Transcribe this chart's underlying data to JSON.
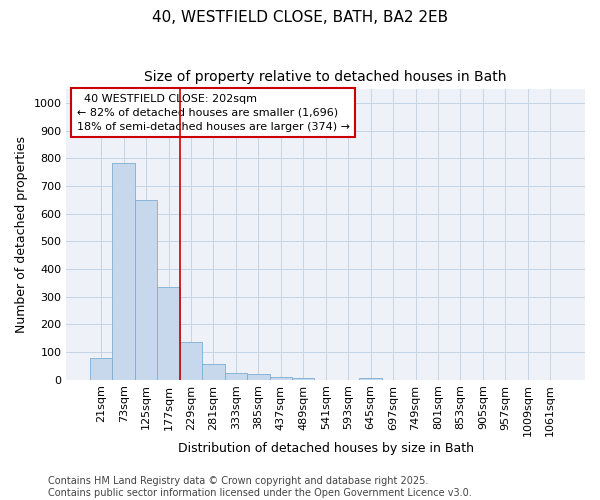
{
  "title_line1": "40, WESTFIELD CLOSE, BATH, BA2 2EB",
  "title_line2": "Size of property relative to detached houses in Bath",
  "xlabel": "Distribution of detached houses by size in Bath",
  "ylabel": "Number of detached properties",
  "categories": [
    "21sqm",
    "73sqm",
    "125sqm",
    "177sqm",
    "229sqm",
    "281sqm",
    "333sqm",
    "385sqm",
    "437sqm",
    "489sqm",
    "541sqm",
    "593sqm",
    "645sqm",
    "697sqm",
    "749sqm",
    "801sqm",
    "853sqm",
    "905sqm",
    "957sqm",
    "1009sqm",
    "1061sqm"
  ],
  "values": [
    80,
    785,
    650,
    335,
    135,
    55,
    25,
    20,
    10,
    5,
    0,
    0,
    5,
    0,
    0,
    0,
    0,
    0,
    0,
    0,
    0
  ],
  "bar_color": "#c8d8ec",
  "bar_edge_color": "#7bafd4",
  "bar_edge_width": 0.6,
  "grid_color": "#c5d5e5",
  "background_color": "#eef2f8",
  "annotation_box_text": "  40 WESTFIELD CLOSE: 202sqm  \n← 82% of detached houses are smaller (1,696)\n18% of semi-detached houses are larger (374) →",
  "annotation_box_color": "#cc0000",
  "vline_color": "#cc0000",
  "vline_x": 3.5,
  "ylim": [
    0,
    1050
  ],
  "yticks": [
    0,
    100,
    200,
    300,
    400,
    500,
    600,
    700,
    800,
    900,
    1000
  ],
  "footer_text": "Contains HM Land Registry data © Crown copyright and database right 2025.\nContains public sector information licensed under the Open Government Licence v3.0.",
  "title_fontsize": 11,
  "subtitle_fontsize": 10,
  "axis_label_fontsize": 9,
  "tick_fontsize": 8,
  "annotation_fontsize": 8,
  "footer_fontsize": 7
}
